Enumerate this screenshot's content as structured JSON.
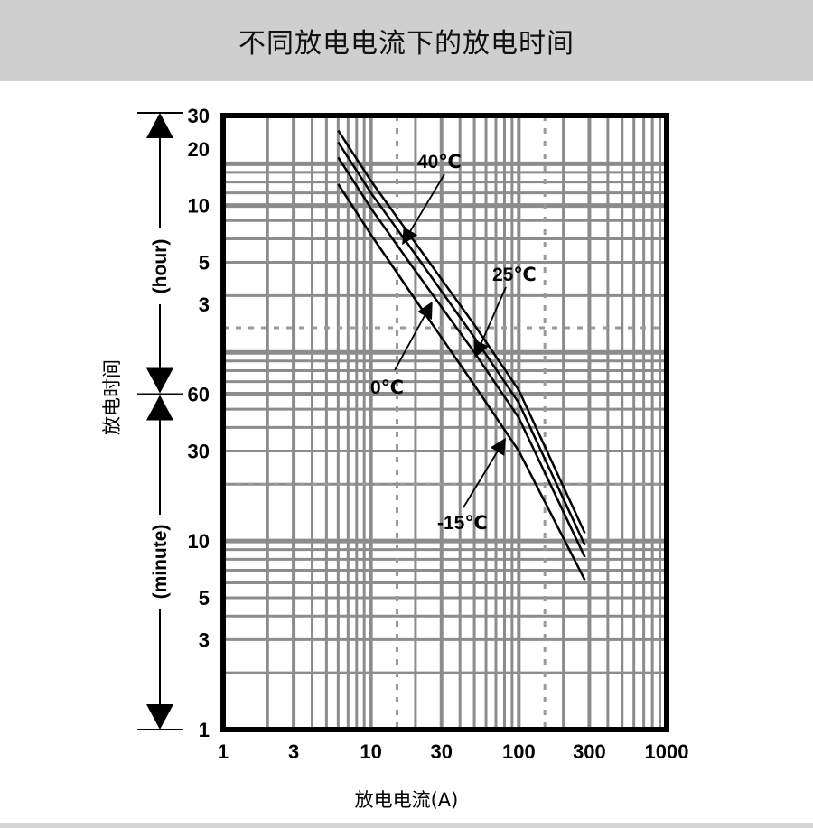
{
  "title": "不同放电电流下的放电时间",
  "chart_data": {
    "type": "line",
    "title": "不同放电电流下的放电时间",
    "xlabel": "放电电流(A)",
    "ylabel": "放电时间",
    "x_scale": "log",
    "y_scale": "log",
    "xlim": [
      1,
      1000
    ],
    "ylim_minutes": [
      1,
      1800
    ],
    "x_ticks": [
      {
        "label": "1",
        "value": 1
      },
      {
        "label": "3",
        "value": 3
      },
      {
        "label": "10",
        "value": 10
      },
      {
        "label": "30",
        "value": 30
      },
      {
        "label": "100",
        "value": 100
      },
      {
        "label": "300",
        "value": 300
      },
      {
        "label": "1000",
        "value": 1000
      }
    ],
    "y_ticks": [
      {
        "label": "1",
        "minutes": 1
      },
      {
        "label": "3",
        "minutes": 3
      },
      {
        "label": "5",
        "minutes": 5
      },
      {
        "label": "10",
        "minutes": 10
      },
      {
        "label": "30",
        "minutes": 30
      },
      {
        "label": "60",
        "minutes": 60
      },
      {
        "label": "3",
        "minutes": 180
      },
      {
        "label": "5",
        "minutes": 300
      },
      {
        "label": "10",
        "minutes": 600
      },
      {
        "label": "20",
        "minutes": 1200
      },
      {
        "label": "30",
        "minutes": 1800
      }
    ],
    "y_segments": [
      {
        "label": "(hour)",
        "from_minutes": 60,
        "to_minutes": 1800
      },
      {
        "label": "(minute)",
        "from_minutes": 1,
        "to_minutes": 60
      }
    ],
    "grid": true,
    "series": [
      {
        "name": "40℃",
        "x": [
          6,
          10,
          20,
          50,
          100,
          280
        ],
        "y_minutes": [
          1500,
          810,
          380,
          140,
          63,
          11
        ]
      },
      {
        "name": "25℃",
        "x": [
          6,
          10,
          20,
          50,
          100,
          280
        ],
        "y_minutes": [
          1300,
          700,
          330,
          120,
          54,
          9.5
        ]
      },
      {
        "name": "0℃",
        "x": [
          6,
          10,
          20,
          50,
          100,
          280
        ],
        "y_minutes": [
          1080,
          580,
          270,
          100,
          45,
          8.2
        ]
      },
      {
        "name": "-15℃",
        "x": [
          6,
          10,
          20,
          50,
          100,
          280
        ],
        "y_minutes": [
          780,
          420,
          190,
          67,
          30,
          6.2
        ]
      }
    ],
    "annotations": [
      {
        "label": "40℃",
        "points_to_series": "40℃"
      },
      {
        "label": "25℃",
        "points_to_series": "25℃"
      },
      {
        "label": "0℃",
        "points_to_series": "0℃"
      },
      {
        "label": "-15℃",
        "points_to_series": "-15℃"
      }
    ]
  }
}
